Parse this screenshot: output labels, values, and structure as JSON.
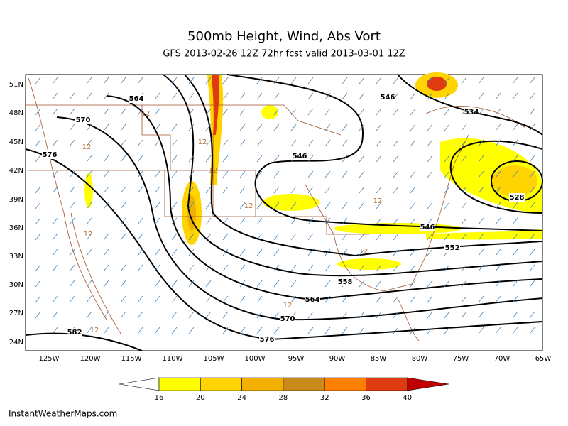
{
  "header": {
    "title": "500mb Height, Wind, Abs Vort",
    "subtitle": "GFS 2013-02-26 12Z 72hr fcst valid 2013-03-01 12Z"
  },
  "map": {
    "lat_labels": [
      "51N",
      "48N",
      "45N",
      "42N",
      "39N",
      "36N",
      "33N",
      "30N",
      "27N",
      "24N"
    ],
    "lon_labels": [
      "125W",
      "120W",
      "115W",
      "110W",
      "105W",
      "100W",
      "95W",
      "90W",
      "85W",
      "80W",
      "75W",
      "70W",
      "65W"
    ],
    "height_labels": [
      "564",
      "570",
      "576",
      "582",
      "576",
      "570",
      "564",
      "558",
      "552",
      "546",
      "546",
      "546",
      "534",
      "528"
    ],
    "vort_labels": [
      "12",
      "12",
      "12",
      "12",
      "12",
      "12",
      "12",
      "12",
      "12",
      "12"
    ]
  },
  "colorbar": {
    "ticks": [
      16,
      20,
      24,
      28,
      32,
      36,
      40
    ],
    "colors": [
      "#ffffff",
      "#ffff00",
      "#ffd400",
      "#f2b000",
      "#c98a1a",
      "#ff8000",
      "#e03a10",
      "#c00000"
    ]
  },
  "footer": {
    "credit": "InstantWeatherMaps.com"
  }
}
